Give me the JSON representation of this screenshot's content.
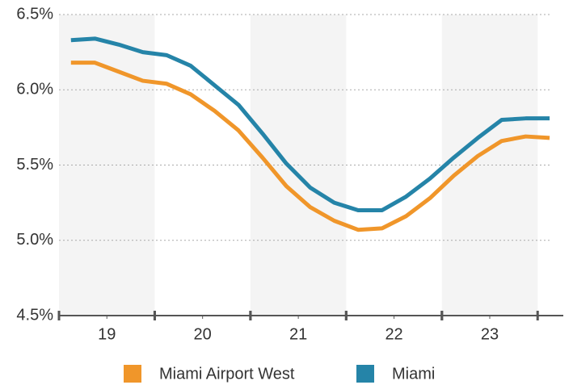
{
  "chart_data": {
    "type": "line",
    "x": [
      18.625,
      18.875,
      19.125,
      19.375,
      19.625,
      19.875,
      20.125,
      20.375,
      20.625,
      20.875,
      21.125,
      21.375,
      21.625,
      21.875,
      22.125,
      22.375,
      22.625,
      22.875,
      23.125,
      23.375,
      23.625
    ],
    "series": [
      {
        "name": "Miami Airport West",
        "color": "#f0962a",
        "values": [
          6.18,
          6.18,
          6.12,
          6.06,
          6.04,
          5.97,
          5.86,
          5.73,
          5.55,
          5.36,
          5.22,
          5.13,
          5.07,
          5.08,
          5.16,
          5.28,
          5.43,
          5.56,
          5.66,
          5.69,
          5.68
        ]
      },
      {
        "name": "Miami",
        "color": "#2584a8",
        "values": [
          6.33,
          6.34,
          6.3,
          6.25,
          6.23,
          6.16,
          6.03,
          5.9,
          5.71,
          5.51,
          5.35,
          5.25,
          5.2,
          5.2,
          5.29,
          5.41,
          5.55,
          5.68,
          5.8,
          5.81,
          5.81
        ]
      }
    ],
    "xlim": [
      18.5,
      23.65
    ],
    "xticks": [
      19,
      20,
      21,
      22,
      23
    ],
    "ylim": [
      4.5,
      6.5
    ],
    "yticks": [
      {
        "value": 4.5,
        "label": "4.5%"
      },
      {
        "value": 5.0,
        "label": "5.0%"
      },
      {
        "value": 5.5,
        "label": "5.5%"
      },
      {
        "value": 6.0,
        "label": "6.0%"
      },
      {
        "value": 6.5,
        "label": "6.5%"
      }
    ],
    "grid": true,
    "legend": "bottom"
  }
}
